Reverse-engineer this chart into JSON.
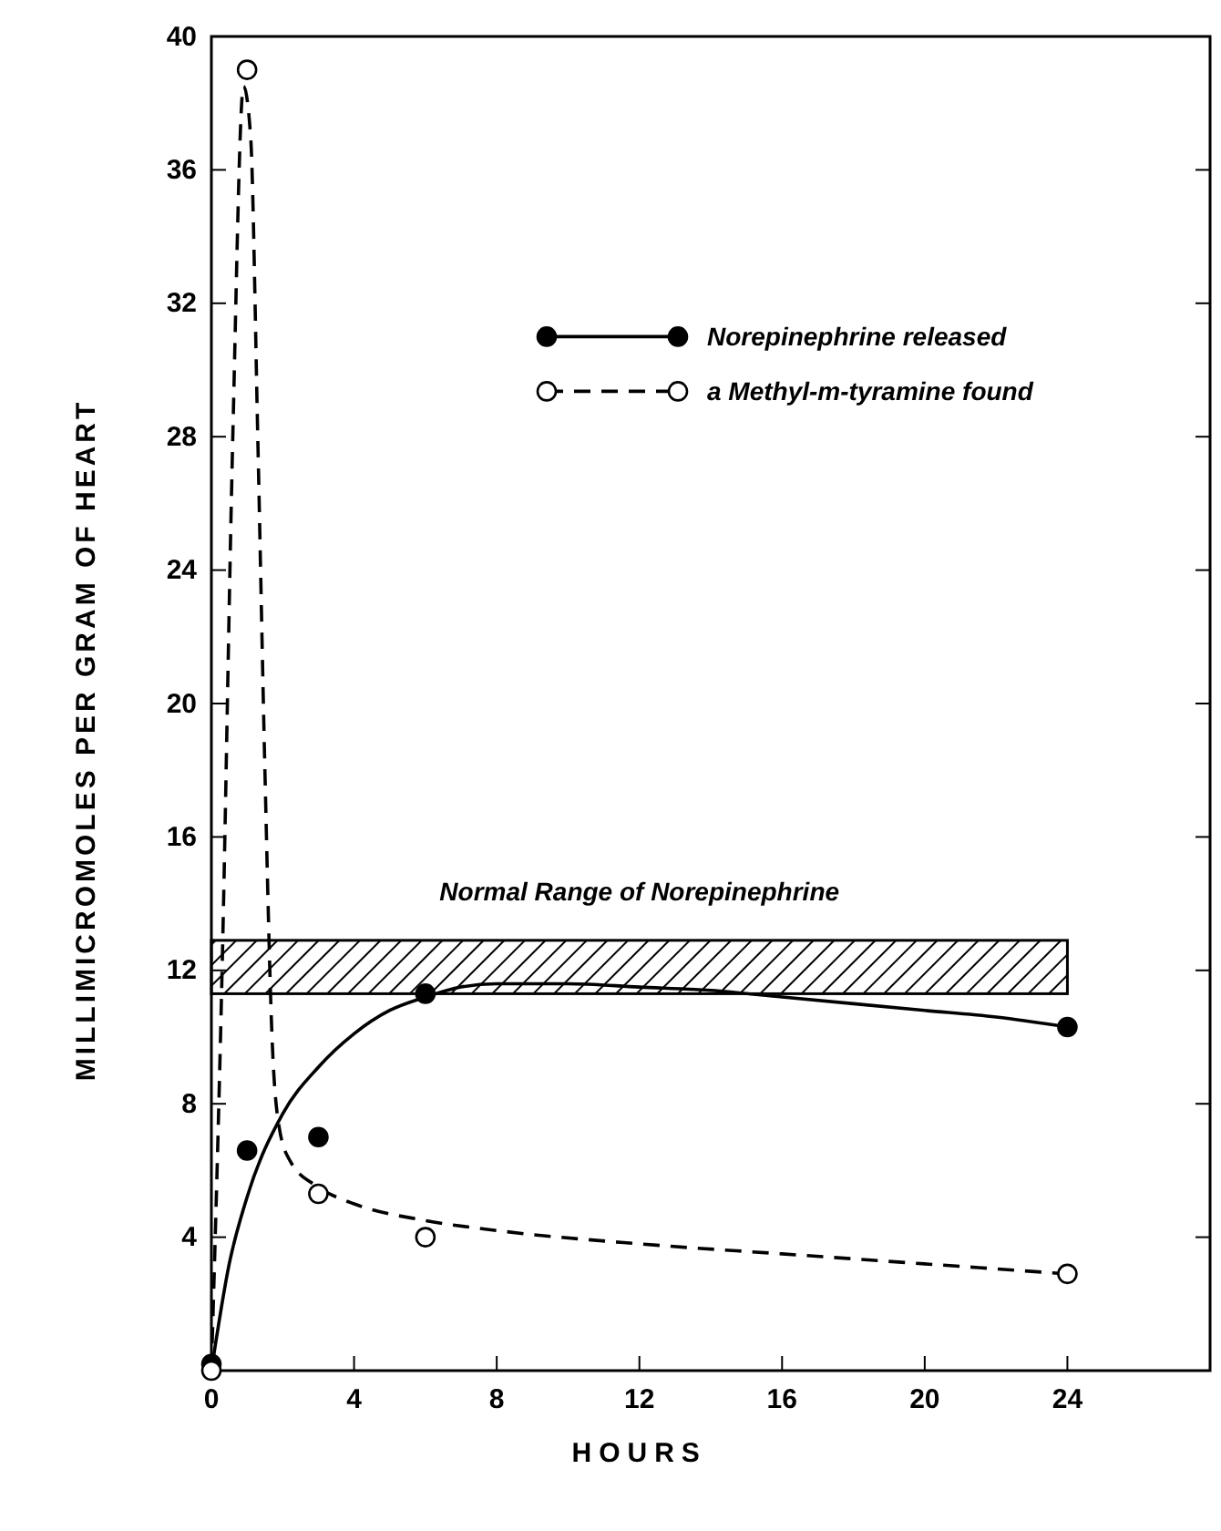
{
  "chart_data": {
    "type": "scatter",
    "xlabel": "HOURS",
    "ylabel": "MILLIMICROMOLES PER GRAM OF HEART",
    "xlim": [
      0,
      28
    ],
    "ylim": [
      0,
      40
    ],
    "xticks": [
      0,
      4,
      8,
      12,
      16,
      20,
      24
    ],
    "yticks": [
      4,
      8,
      12,
      16,
      20,
      24,
      28,
      32,
      36,
      40
    ],
    "legend": "top right",
    "grid": false,
    "series": [
      {
        "name": "Norepinephrine released",
        "color": "#000000",
        "marker": "circle",
        "line_style": "solid",
        "x": [
          0,
          1,
          3,
          6,
          24
        ],
        "values": [
          0.2,
          6.6,
          7.0,
          11.3,
          10.3
        ]
      },
      {
        "name": "a Methyl-m-tyramine found",
        "color": "#ffffff",
        "marker": "circle",
        "line_style": "dashed",
        "x": [
          0,
          1,
          3,
          6,
          24
        ],
        "values": [
          0,
          39,
          5.3,
          4.0,
          2.9
        ]
      },
      {
        "type": "line",
        "color": "#000000",
        "line_style": "solid",
        "x": [
          0,
          0.5,
          1,
          2,
          3,
          4,
          5,
          6,
          7,
          8,
          9,
          10,
          12,
          14,
          16,
          18,
          20,
          22,
          24
        ],
        "values": [
          0,
          3.2,
          5.2,
          7.7,
          9.1,
          10.1,
          10.8,
          11.2,
          11.5,
          11.6,
          11.6,
          11.6,
          11.5,
          11.4,
          11.2,
          11.0,
          10.8,
          10.6,
          10.3
        ]
      },
      {
        "type": "line",
        "color": "#000000",
        "line_style": "dashed",
        "x": [
          0,
          0.3,
          0.6,
          0.9,
          1.1,
          1.3,
          1.5,
          1.7,
          1.9,
          2.2,
          3,
          4,
          6,
          8,
          12,
          16,
          20,
          24
        ],
        "values": [
          0,
          12,
          28,
          38.5,
          37,
          28,
          18,
          10,
          7.3,
          6.3,
          5.5,
          5.0,
          4.5,
          4.2,
          3.8,
          3.5,
          3.2,
          2.9
        ]
      }
    ],
    "bands": [
      {
        "axis": "y",
        "from": 11.3,
        "to": 12.9,
        "label": "Normal Range of Norepinephrine"
      }
    ]
  }
}
